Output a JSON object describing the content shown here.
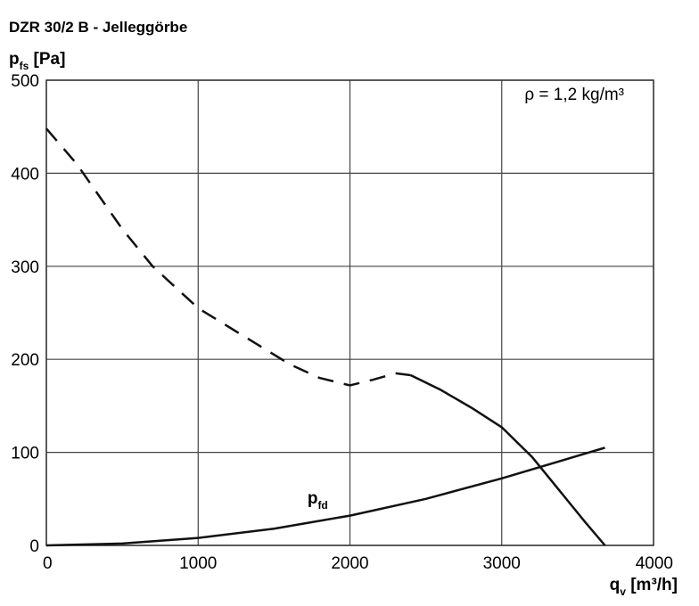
{
  "chart_data": {
    "type": "line",
    "title": "DZR 30/2 B - Jelleggörbe",
    "ylabel": {
      "main": "p",
      "sub": "fs",
      "unit": " [Pa]"
    },
    "xlabel": {
      "main": "q",
      "sub": "v",
      "unit": " [m³/h]"
    },
    "annotation": "ρ = 1,2 kg/m³",
    "xlim": [
      0,
      4000
    ],
    "ylim": [
      0,
      500
    ],
    "xticks": [
      0,
      1000,
      2000,
      3000,
      4000
    ],
    "yticks": [
      0,
      100,
      200,
      300,
      400,
      500
    ],
    "grid": true,
    "series": [
      {
        "name": "",
        "style": "dashed",
        "x": [
          0,
          200,
          500,
          700,
          1000,
          1300,
          1600,
          1800,
          2000,
          2150,
          2300,
          2400
        ],
        "y": [
          448,
          410,
          340,
          300,
          255,
          225,
          195,
          180,
          172,
          178,
          185,
          183
        ]
      },
      {
        "name": "",
        "style": "solid",
        "x": [
          2400,
          2600,
          2800,
          3000,
          3200,
          3400,
          3550,
          3680
        ],
        "y": [
          183,
          167,
          148,
          127,
          95,
          55,
          25,
          0
        ]
      },
      {
        "name": "p_fd",
        "label": {
          "main": "p",
          "sub": "fd"
        },
        "style": "solid",
        "x": [
          0,
          500,
          1000,
          1500,
          2000,
          2500,
          3000,
          3680
        ],
        "y": [
          0,
          2,
          8,
          18,
          32,
          50,
          72,
          105
        ]
      }
    ]
  }
}
